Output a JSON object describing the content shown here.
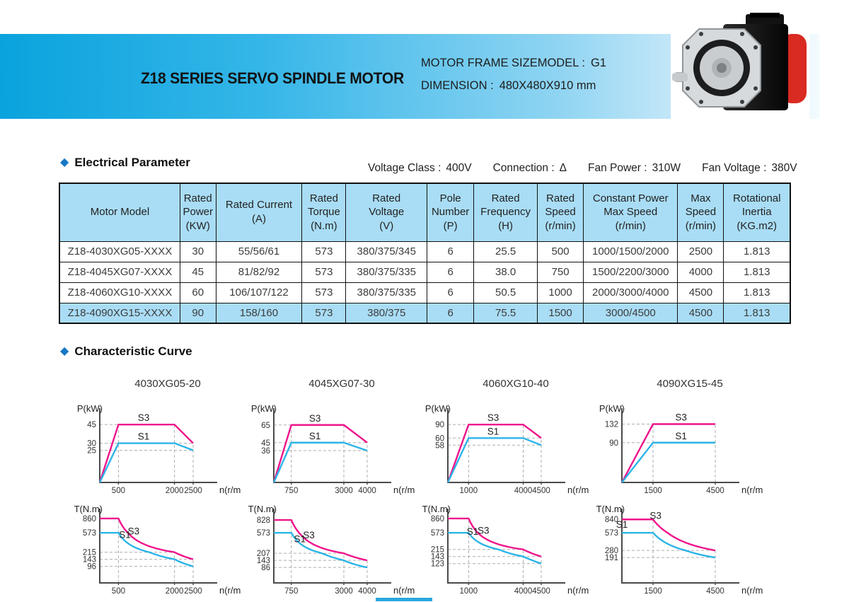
{
  "header": {
    "title": "Z18 SERIES SERVO SPINDLE MOTOR",
    "info": [
      {
        "label": "MOTOR FRAME SIZEMODEL :",
        "value": "G1"
      },
      {
        "label": "DIMENSION :",
        "value": "480X480X910 mm"
      }
    ]
  },
  "electrical": {
    "section_title": "Electrical Parameter",
    "specs": [
      {
        "label": "Voltage Class :",
        "value": "400V"
      },
      {
        "label": "Connection :",
        "value": "Δ"
      },
      {
        "label": "Fan Power :",
        "value": "310W"
      },
      {
        "label": "Fan Voltage :",
        "value": "380V"
      }
    ],
    "table": {
      "headers": [
        "Motor Model",
        "Rated\nPower\n(KW)",
        "Rated  Current\n(A)",
        "Rated\nTorque\n(N.m)",
        "Rated\nVoltage\n(V)",
        "Pole\nNumber\n(P)",
        "Rated\nFrequency\n(H)",
        "Rated\nSpeed\n(r/min)",
        "Constant Power\nMax Speed\n(r/min)",
        "Max\nSpeed\n(r/min)",
        "Rotational\nInertia\n(KG.m2)"
      ],
      "rows": [
        [
          "Z18-4030XG05-XXXX",
          "30",
          "55/56/61",
          "573",
          "380/375/345",
          "6",
          "25.5",
          "500",
          "1000/1500/2000",
          "2500",
          "1.813"
        ],
        [
          "Z18-4045XG07-XXXX",
          "45",
          "81/82/92",
          "573",
          "380/375/335",
          "6",
          "38.0",
          "750",
          "1500/2200/3000",
          "4000",
          "1.813"
        ],
        [
          "Z18-4060XG10-XXXX",
          "60",
          "106/107/122",
          "573",
          "380/375/335",
          "6",
          "50.5",
          "1000",
          "2000/3000/4000",
          "4500",
          "1.813"
        ],
        [
          "Z18-4090XG15-XXXX",
          "90",
          "158/160",
          "573",
          "380/375",
          "6",
          "75.5",
          "1500",
          "3000/4500",
          "4500",
          "1.813"
        ]
      ],
      "highlight_row": 3
    }
  },
  "curves": {
    "section_title": "Characteristic Curve",
    "titles": [
      "4030XG05-20",
      "4045XG07-30",
      "4060XG10-40",
      "4090XG15-45"
    ]
  },
  "colors": {
    "s3_curve": "#ef148b",
    "s1_curve": "#2cb4e8",
    "accent_blue": "#1878c4",
    "table_header_bg": "#a9ddf5",
    "banner_blue": "#0aa3dd"
  },
  "chart_data": [
    {
      "type": "line",
      "kind": "power",
      "group": "4030XG05-20",
      "ylabel": "P(kW)",
      "xlabel": "n(r/min)",
      "xmax": 2500,
      "ymax": 55,
      "xticks": [
        500,
        2000,
        2500
      ],
      "yticks": [
        45,
        30,
        25
      ],
      "series": [
        {
          "name": "S3",
          "color": "#ef148b",
          "points": [
            [
              0,
              0
            ],
            [
              500,
              45
            ],
            [
              2000,
              45
            ],
            [
              2500,
              30
            ]
          ]
        },
        {
          "name": "S1",
          "color": "#2cb4e8",
          "points": [
            [
              0,
              0
            ],
            [
              500,
              30
            ],
            [
              2000,
              30
            ],
            [
              2500,
              25
            ]
          ]
        }
      ]
    },
    {
      "type": "line",
      "kind": "power",
      "group": "4045XG07-30",
      "ylabel": "P(kW)",
      "xlabel": "n(r/min)",
      "xmax": 4000,
      "ymax": 80,
      "xticks": [
        750,
        3000,
        4000
      ],
      "yticks": [
        65,
        45,
        36
      ],
      "series": [
        {
          "name": "S3",
          "color": "#ef148b",
          "points": [
            [
              0,
              0
            ],
            [
              750,
              65
            ],
            [
              3000,
              65
            ],
            [
              4000,
              45
            ]
          ]
        },
        {
          "name": "S1",
          "color": "#2cb4e8",
          "points": [
            [
              0,
              0
            ],
            [
              750,
              45
            ],
            [
              3000,
              45
            ],
            [
              4000,
              36
            ]
          ]
        }
      ]
    },
    {
      "type": "line",
      "kind": "power",
      "group": "4060XG10-40",
      "ylabel": "P(kW)",
      "xlabel": "n(r/min)",
      "xmax": 4500,
      "ymax": 110,
      "xticks": [
        1000,
        4000,
        4500
      ],
      "yticks": [
        90,
        60,
        58
      ],
      "series": [
        {
          "name": "S3",
          "color": "#ef148b",
          "points": [
            [
              0,
              0
            ],
            [
              1000,
              90
            ],
            [
              4000,
              90
            ],
            [
              4500,
              60
            ]
          ]
        },
        {
          "name": "S1",
          "color": "#2cb4e8",
          "points": [
            [
              0,
              0
            ],
            [
              1000,
              60
            ],
            [
              4000,
              60
            ],
            [
              4500,
              58
            ]
          ]
        }
      ]
    },
    {
      "type": "line",
      "kind": "power",
      "group": "4090XG15-45",
      "ylabel": "P(kW)",
      "xlabel": "n(r/min)",
      "xmax": 4500,
      "ymax": 160,
      "xticks": [
        1500,
        4500
      ],
      "yticks": [
        132,
        90
      ],
      "series": [
        {
          "name": "S3",
          "color": "#ef148b",
          "points": [
            [
              0,
              0
            ],
            [
              1500,
              132
            ],
            [
              4500,
              132
            ]
          ]
        },
        {
          "name": "S1",
          "color": "#2cb4e8",
          "points": [
            [
              0,
              0
            ],
            [
              1500,
              90
            ],
            [
              4500,
              90
            ]
          ]
        }
      ]
    },
    {
      "type": "line",
      "kind": "torque",
      "group": "4030XG05-20",
      "ylabel": "T(N.m)",
      "xlabel": "n(r/min)",
      "xmax": 2500,
      "ymax": 1000,
      "xticks": [
        500,
        2000,
        2500
      ],
      "yticks": [
        860,
        573,
        215,
        143,
        96
      ],
      "series": [
        {
          "name": "S3",
          "color": "#ef148b",
          "points": [
            [
              0,
              860
            ],
            [
              500,
              860
            ],
            [
              2000,
              215
            ],
            [
              2500,
              143
            ]
          ]
        },
        {
          "name": "S1",
          "color": "#2cb4e8",
          "points": [
            [
              0,
              573
            ],
            [
              500,
              573
            ],
            [
              2000,
              143
            ],
            [
              2500,
              96
            ]
          ]
        }
      ]
    },
    {
      "type": "line",
      "kind": "torque",
      "group": "4045XG07-30",
      "ylabel": "T(N.m)",
      "xlabel": "n(r/min)",
      "xmax": 4000,
      "ymax": 1000,
      "xticks": [
        750,
        3000,
        4000
      ],
      "yticks": [
        828,
        573,
        207,
        143,
        86
      ],
      "series": [
        {
          "name": "S3",
          "color": "#ef148b",
          "points": [
            [
              0,
              828
            ],
            [
              750,
              828
            ],
            [
              3000,
              207
            ],
            [
              4000,
              143
            ]
          ]
        },
        {
          "name": "S1",
          "color": "#2cb4e8",
          "points": [
            [
              0,
              573
            ],
            [
              750,
              573
            ],
            [
              3000,
              143
            ],
            [
              4000,
              86
            ]
          ]
        }
      ]
    },
    {
      "type": "line",
      "kind": "torque",
      "group": "4060XG10-40",
      "ylabel": "T(N.m)",
      "xlabel": "n(r/min)",
      "xmax": 4500,
      "ymax": 1000,
      "xticks": [
        1000,
        4000,
        4500
      ],
      "yticks": [
        860,
        573,
        215,
        143,
        123
      ],
      "series": [
        {
          "name": "S3",
          "color": "#ef148b",
          "points": [
            [
              0,
              860
            ],
            [
              1000,
              860
            ],
            [
              4000,
              215
            ],
            [
              4500,
              143
            ]
          ]
        },
        {
          "name": "S1",
          "color": "#2cb4e8",
          "points": [
            [
              0,
              573
            ],
            [
              1000,
              573
            ],
            [
              4000,
              143
            ],
            [
              4500,
              123
            ]
          ]
        }
      ]
    },
    {
      "type": "line",
      "kind": "torque",
      "group": "4090XG15-45",
      "ylabel": "T(N.m)",
      "xlabel": "n(r/min)",
      "xmax": 4500,
      "ymax": 1000,
      "xticks": [
        1500,
        4500
      ],
      "yticks": [
        840,
        573,
        280,
        191
      ],
      "series": [
        {
          "name": "S3",
          "color": "#ef148b",
          "points": [
            [
              0,
              840
            ],
            [
              1500,
              840
            ],
            [
              4500,
              280
            ]
          ]
        },
        {
          "name": "S1",
          "color": "#2cb4e8",
          "points": [
            [
              0,
              573
            ],
            [
              1500,
              573
            ],
            [
              4500,
              191
            ]
          ]
        }
      ]
    }
  ]
}
